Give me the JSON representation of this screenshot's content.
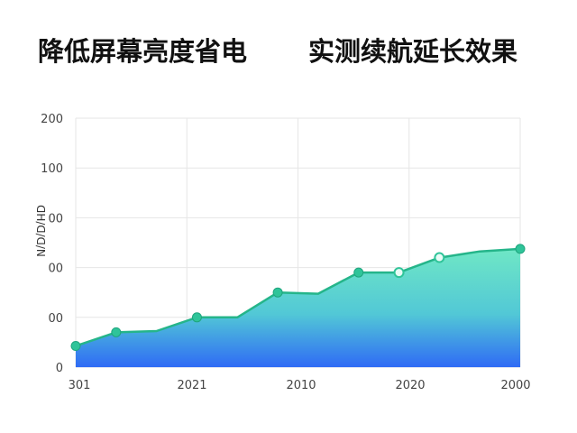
{
  "chart_data": {
    "type": "area",
    "title_left": "降低屏幕亮度省电",
    "title_right": "实测续航延长效果",
    "ylabel": "ᗡᕼ/ᗡ/ᗡ/N",
    "xlabel": "",
    "x_ticks": [
      "301",
      "2021",
      "2010",
      "2020",
      "2000"
    ],
    "y_ticks": [
      "200",
      "100",
      "00",
      "00",
      "00",
      "0"
    ],
    "ylim": [
      0,
      200
    ],
    "grid": true,
    "legend": "none",
    "series": [
      {
        "x": [
          0,
          0.5,
          1,
          1.5,
          2,
          2.5,
          3,
          3.5,
          4,
          4.5,
          5,
          5.5
        ],
        "values": [
          17,
          28,
          29,
          40,
          40,
          60,
          59,
          76,
          76,
          88,
          93,
          95
        ],
        "markers": [
          true,
          true,
          false,
          true,
          false,
          true,
          false,
          true,
          true,
          true,
          false,
          true
        ],
        "hollow": [
          false,
          false,
          false,
          false,
          false,
          false,
          false,
          false,
          true,
          true,
          false,
          false
        ]
      }
    ],
    "colors": {
      "line": "#25b58a",
      "marker": "#2fc499",
      "fill_top": "#6fe7c5",
      "fill_mid": "#52c8d6",
      "fill_bottom": "#2f6bf5",
      "grid": "#e6e6e6"
    }
  }
}
